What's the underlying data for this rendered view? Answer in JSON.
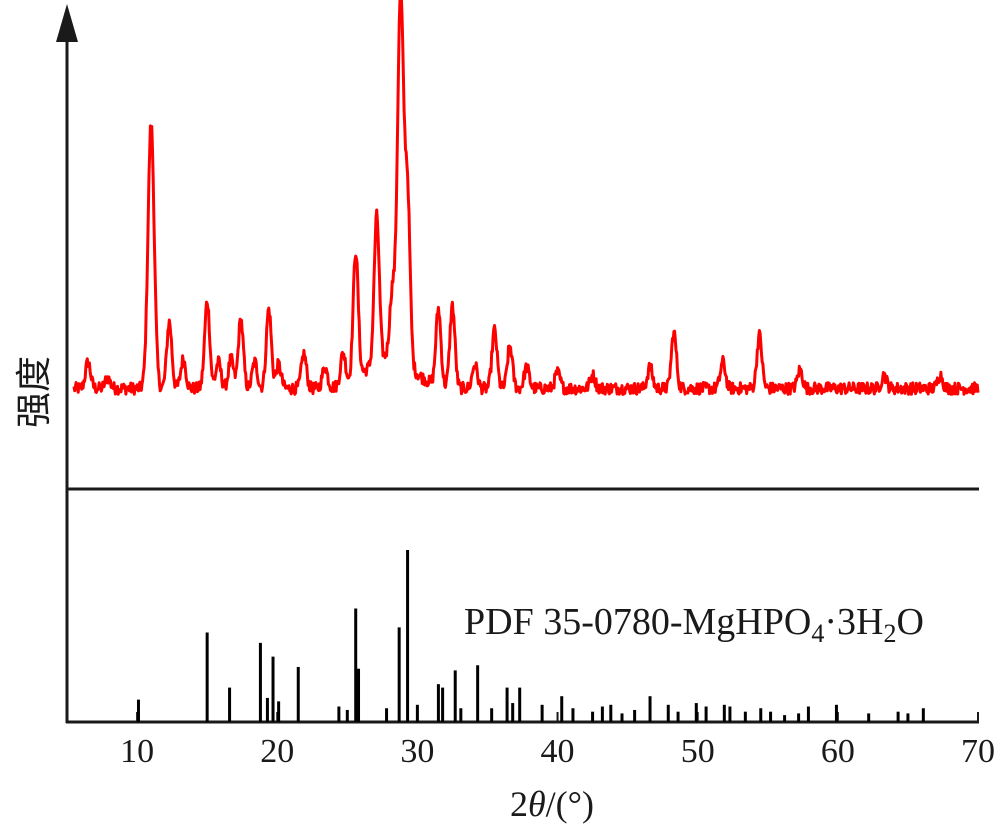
{
  "chart_data": {
    "type": "line",
    "xlabel_prefix": "2",
    "xlabel_var": "θ",
    "xlabel_suffix": "/(°)",
    "ylabel": "强度",
    "xlim": [
      5,
      70
    ],
    "xticks": [
      10,
      20,
      30,
      40,
      50,
      60,
      70
    ],
    "measured": {
      "color": "#ff0000",
      "baseline": 0.08,
      "peaks": [
        {
          "x": 6.5,
          "h": 0.1
        },
        {
          "x": 7.9,
          "h": 0.04
        },
        {
          "x": 11.0,
          "h": 1.0
        },
        {
          "x": 12.3,
          "h": 0.25
        },
        {
          "x": 13.3,
          "h": 0.11
        },
        {
          "x": 15.0,
          "h": 0.33
        },
        {
          "x": 15.8,
          "h": 0.1
        },
        {
          "x": 16.7,
          "h": 0.11
        },
        {
          "x": 17.4,
          "h": 0.26
        },
        {
          "x": 18.4,
          "h": 0.1
        },
        {
          "x": 19.4,
          "h": 0.3
        },
        {
          "x": 20.1,
          "h": 0.09
        },
        {
          "x": 21.9,
          "h": 0.13
        },
        {
          "x": 23.4,
          "h": 0.08
        },
        {
          "x": 24.7,
          "h": 0.12
        },
        {
          "x": 25.6,
          "h": 0.48
        },
        {
          "x": 27.1,
          "h": 0.55
        },
        {
          "x": 28.2,
          "h": 0.24
        },
        {
          "x": 28.8,
          "h": 1.38
        },
        {
          "x": 29.3,
          "h": 0.62
        },
        {
          "x": 31.5,
          "h": 0.29
        },
        {
          "x": 32.5,
          "h": 0.31
        },
        {
          "x": 34.1,
          "h": 0.09
        },
        {
          "x": 35.5,
          "h": 0.22
        },
        {
          "x": 36.6,
          "h": 0.16
        },
        {
          "x": 37.8,
          "h": 0.08
        },
        {
          "x": 40.0,
          "h": 0.06
        },
        {
          "x": 42.5,
          "h": 0.05
        },
        {
          "x": 46.6,
          "h": 0.08
        },
        {
          "x": 48.3,
          "h": 0.21
        },
        {
          "x": 51.8,
          "h": 0.1
        },
        {
          "x": 54.4,
          "h": 0.2
        },
        {
          "x": 57.3,
          "h": 0.07
        },
        {
          "x": 63.3,
          "h": 0.05
        },
        {
          "x": 67.3,
          "h": 0.05
        }
      ]
    },
    "reference": {
      "label_main": "PDF 35-0780-MgHPO",
      "label_sub1": "4",
      "label_mid": "·3H",
      "label_sub2": "2",
      "label_end": "O",
      "color": "#000000",
      "lines": [
        {
          "x": 10.1,
          "h": 0.13
        },
        {
          "x": 15.0,
          "h": 0.52
        },
        {
          "x": 16.6,
          "h": 0.2
        },
        {
          "x": 18.8,
          "h": 0.46
        },
        {
          "x": 19.3,
          "h": 0.14
        },
        {
          "x": 19.7,
          "h": 0.38
        },
        {
          "x": 20.1,
          "h": 0.12
        },
        {
          "x": 21.5,
          "h": 0.32
        },
        {
          "x": 24.4,
          "h": 0.09
        },
        {
          "x": 25.0,
          "h": 0.07
        },
        {
          "x": 25.6,
          "h": 0.66
        },
        {
          "x": 25.8,
          "h": 0.31
        },
        {
          "x": 27.8,
          "h": 0.08
        },
        {
          "x": 28.7,
          "h": 0.55
        },
        {
          "x": 29.3,
          "h": 1.0
        },
        {
          "x": 30.0,
          "h": 0.1
        },
        {
          "x": 31.5,
          "h": 0.22
        },
        {
          "x": 31.8,
          "h": 0.2
        },
        {
          "x": 32.7,
          "h": 0.3
        },
        {
          "x": 33.1,
          "h": 0.08
        },
        {
          "x": 34.3,
          "h": 0.33
        },
        {
          "x": 35.3,
          "h": 0.08
        },
        {
          "x": 36.4,
          "h": 0.2
        },
        {
          "x": 36.8,
          "h": 0.11
        },
        {
          "x": 37.3,
          "h": 0.2
        },
        {
          "x": 38.9,
          "h": 0.1
        },
        {
          "x": 40.3,
          "h": 0.15
        },
        {
          "x": 41.1,
          "h": 0.08
        },
        {
          "x": 42.5,
          "h": 0.06
        },
        {
          "x": 43.2,
          "h": 0.09
        },
        {
          "x": 43.8,
          "h": 0.1
        },
        {
          "x": 44.6,
          "h": 0.05
        },
        {
          "x": 45.5,
          "h": 0.07
        },
        {
          "x": 46.6,
          "h": 0.15
        },
        {
          "x": 47.9,
          "h": 0.1
        },
        {
          "x": 48.6,
          "h": 0.06
        },
        {
          "x": 49.9,
          "h": 0.11
        },
        {
          "x": 50.6,
          "h": 0.09
        },
        {
          "x": 51.9,
          "h": 0.1
        },
        {
          "x": 52.3,
          "h": 0.09
        },
        {
          "x": 53.4,
          "h": 0.06
        },
        {
          "x": 54.5,
          "h": 0.08
        },
        {
          "x": 55.2,
          "h": 0.06
        },
        {
          "x": 56.2,
          "h": 0.04
        },
        {
          "x": 57.2,
          "h": 0.05
        },
        {
          "x": 57.9,
          "h": 0.09
        },
        {
          "x": 59.9,
          "h": 0.1
        },
        {
          "x": 62.2,
          "h": 0.05
        },
        {
          "x": 64.3,
          "h": 0.06
        },
        {
          "x": 65.0,
          "h": 0.05
        },
        {
          "x": 66.1,
          "h": 0.08
        }
      ]
    }
  }
}
